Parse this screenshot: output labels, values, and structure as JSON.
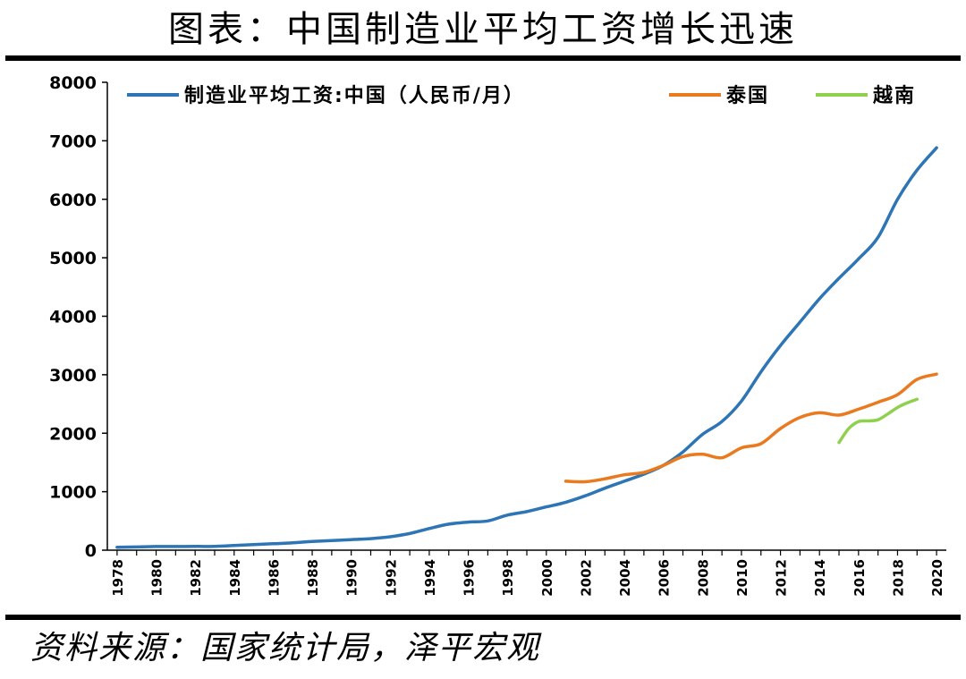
{
  "header": {
    "title": "图表：中国制造业平均工资增长迅速"
  },
  "footer": {
    "source": "资料来源：国家统计局，泽平宏观"
  },
  "chart_data": {
    "type": "line",
    "title": "图表：中国制造业平均工资增长迅速",
    "ylim": [
      0,
      8000
    ],
    "yticks": [
      0,
      1000,
      2000,
      3000,
      4000,
      5000,
      6000,
      7000,
      8000
    ],
    "xlim": [
      1977.5,
      2020.5
    ],
    "xticks": [
      1978,
      1980,
      1982,
      1984,
      1986,
      1988,
      1990,
      1992,
      1994,
      1996,
      1998,
      2000,
      2002,
      2004,
      2006,
      2008,
      2010,
      2012,
      2014,
      2016,
      2018,
      2020
    ],
    "legend_placement": "top",
    "grid": false,
    "series": [
      {
        "name": "制造业平均工资:中国（人民币/月）",
        "color": "#2E75B6",
        "points": [
          [
            1978,
            50
          ],
          [
            1979,
            55
          ],
          [
            1980,
            62
          ],
          [
            1981,
            63
          ],
          [
            1982,
            64
          ],
          [
            1983,
            66
          ],
          [
            1984,
            80
          ],
          [
            1985,
            96
          ],
          [
            1986,
            110
          ],
          [
            1987,
            125
          ],
          [
            1988,
            150
          ],
          [
            1989,
            165
          ],
          [
            1990,
            180
          ],
          [
            1991,
            198
          ],
          [
            1992,
            230
          ],
          [
            1993,
            285
          ],
          [
            1994,
            370
          ],
          [
            1995,
            445
          ],
          [
            1996,
            480
          ],
          [
            1997,
            500
          ],
          [
            1998,
            600
          ],
          [
            1999,
            660
          ],
          [
            2000,
            740
          ],
          [
            2001,
            820
          ],
          [
            2002,
            930
          ],
          [
            2003,
            1060
          ],
          [
            2004,
            1180
          ],
          [
            2005,
            1300
          ],
          [
            2006,
            1450
          ],
          [
            2007,
            1680
          ],
          [
            2008,
            1980
          ],
          [
            2009,
            2200
          ],
          [
            2010,
            2550
          ],
          [
            2011,
            3050
          ],
          [
            2012,
            3500
          ],
          [
            2013,
            3900
          ],
          [
            2014,
            4300
          ],
          [
            2015,
            4650
          ],
          [
            2016,
            4980
          ],
          [
            2017,
            5350
          ],
          [
            2018,
            6000
          ],
          [
            2019,
            6500
          ],
          [
            2020,
            6880
          ]
        ]
      },
      {
        "name": "泰国",
        "color": "#E97A1F",
        "points": [
          [
            2001,
            1180
          ],
          [
            2002,
            1170
          ],
          [
            2003,
            1220
          ],
          [
            2004,
            1290
          ],
          [
            2005,
            1330
          ],
          [
            2006,
            1450
          ],
          [
            2007,
            1600
          ],
          [
            2008,
            1640
          ],
          [
            2009,
            1580
          ],
          [
            2010,
            1750
          ],
          [
            2011,
            1820
          ],
          [
            2012,
            2080
          ],
          [
            2013,
            2270
          ],
          [
            2014,
            2350
          ],
          [
            2015,
            2310
          ],
          [
            2016,
            2410
          ],
          [
            2017,
            2530
          ],
          [
            2018,
            2660
          ],
          [
            2019,
            2920
          ],
          [
            2020,
            3010
          ]
        ]
      },
      {
        "name": "越南",
        "color": "#8FD14F",
        "points": [
          [
            2015,
            1840
          ],
          [
            2015.5,
            2080
          ],
          [
            2016,
            2200
          ],
          [
            2016.5,
            2210
          ],
          [
            2017,
            2230
          ],
          [
            2017.5,
            2330
          ],
          [
            2018,
            2440
          ],
          [
            2018.5,
            2520
          ],
          [
            2019,
            2580
          ]
        ]
      }
    ]
  }
}
